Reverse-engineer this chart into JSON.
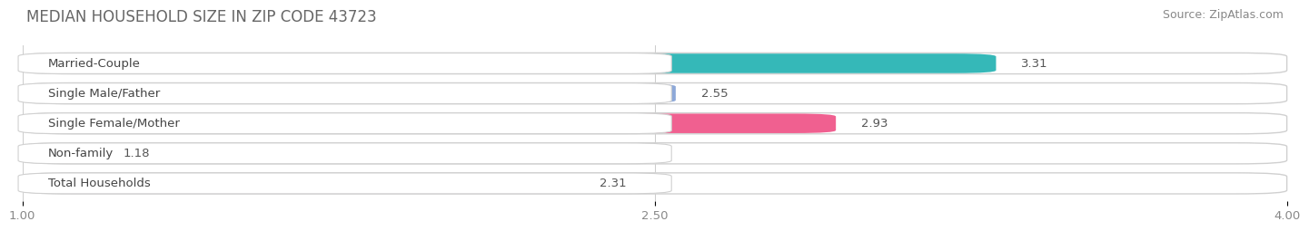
{
  "title": "MEDIAN HOUSEHOLD SIZE IN ZIP CODE 43723",
  "source": "Source: ZipAtlas.com",
  "categories": [
    "Married-Couple",
    "Single Male/Father",
    "Single Female/Mother",
    "Non-family",
    "Total Households"
  ],
  "values": [
    3.31,
    2.55,
    2.93,
    1.18,
    2.31
  ],
  "bar_colors": [
    "#35b8b8",
    "#8da8d8",
    "#f06090",
    "#f5c898",
    "#b098cc"
  ],
  "xlim_min": 1.0,
  "xlim_max": 4.0,
  "xticks": [
    1.0,
    2.5,
    4.0
  ],
  "xticklabels": [
    "1.00",
    "2.50",
    "4.00"
  ],
  "background_color": "#f4f4f4",
  "title_fontsize": 12,
  "label_fontsize": 9.5,
  "value_fontsize": 9.5,
  "source_fontsize": 9
}
